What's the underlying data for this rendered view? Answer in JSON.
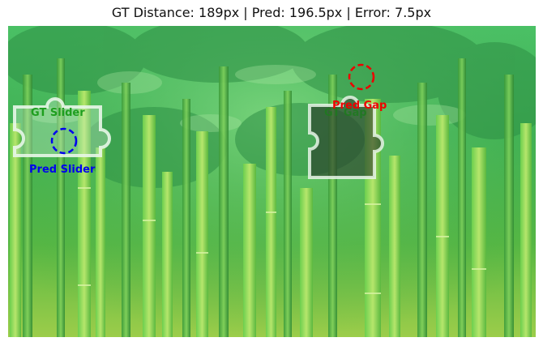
{
  "header": {
    "title": "GT Distance: 189px | Pred: 196.5px | Error: 7.5px"
  },
  "annotations": {
    "gt_slider_label": "GT Slider",
    "pred_slider_label": "Pred Slider",
    "gt_gap_label": "GT Gap",
    "pred_gap_label": "Pred Gap"
  },
  "colors": {
    "gt": "#1e9e1e",
    "pred_slider": "#0000ee",
    "pred_gap": "#ee0000",
    "piece_outline": "#dff2df"
  }
}
